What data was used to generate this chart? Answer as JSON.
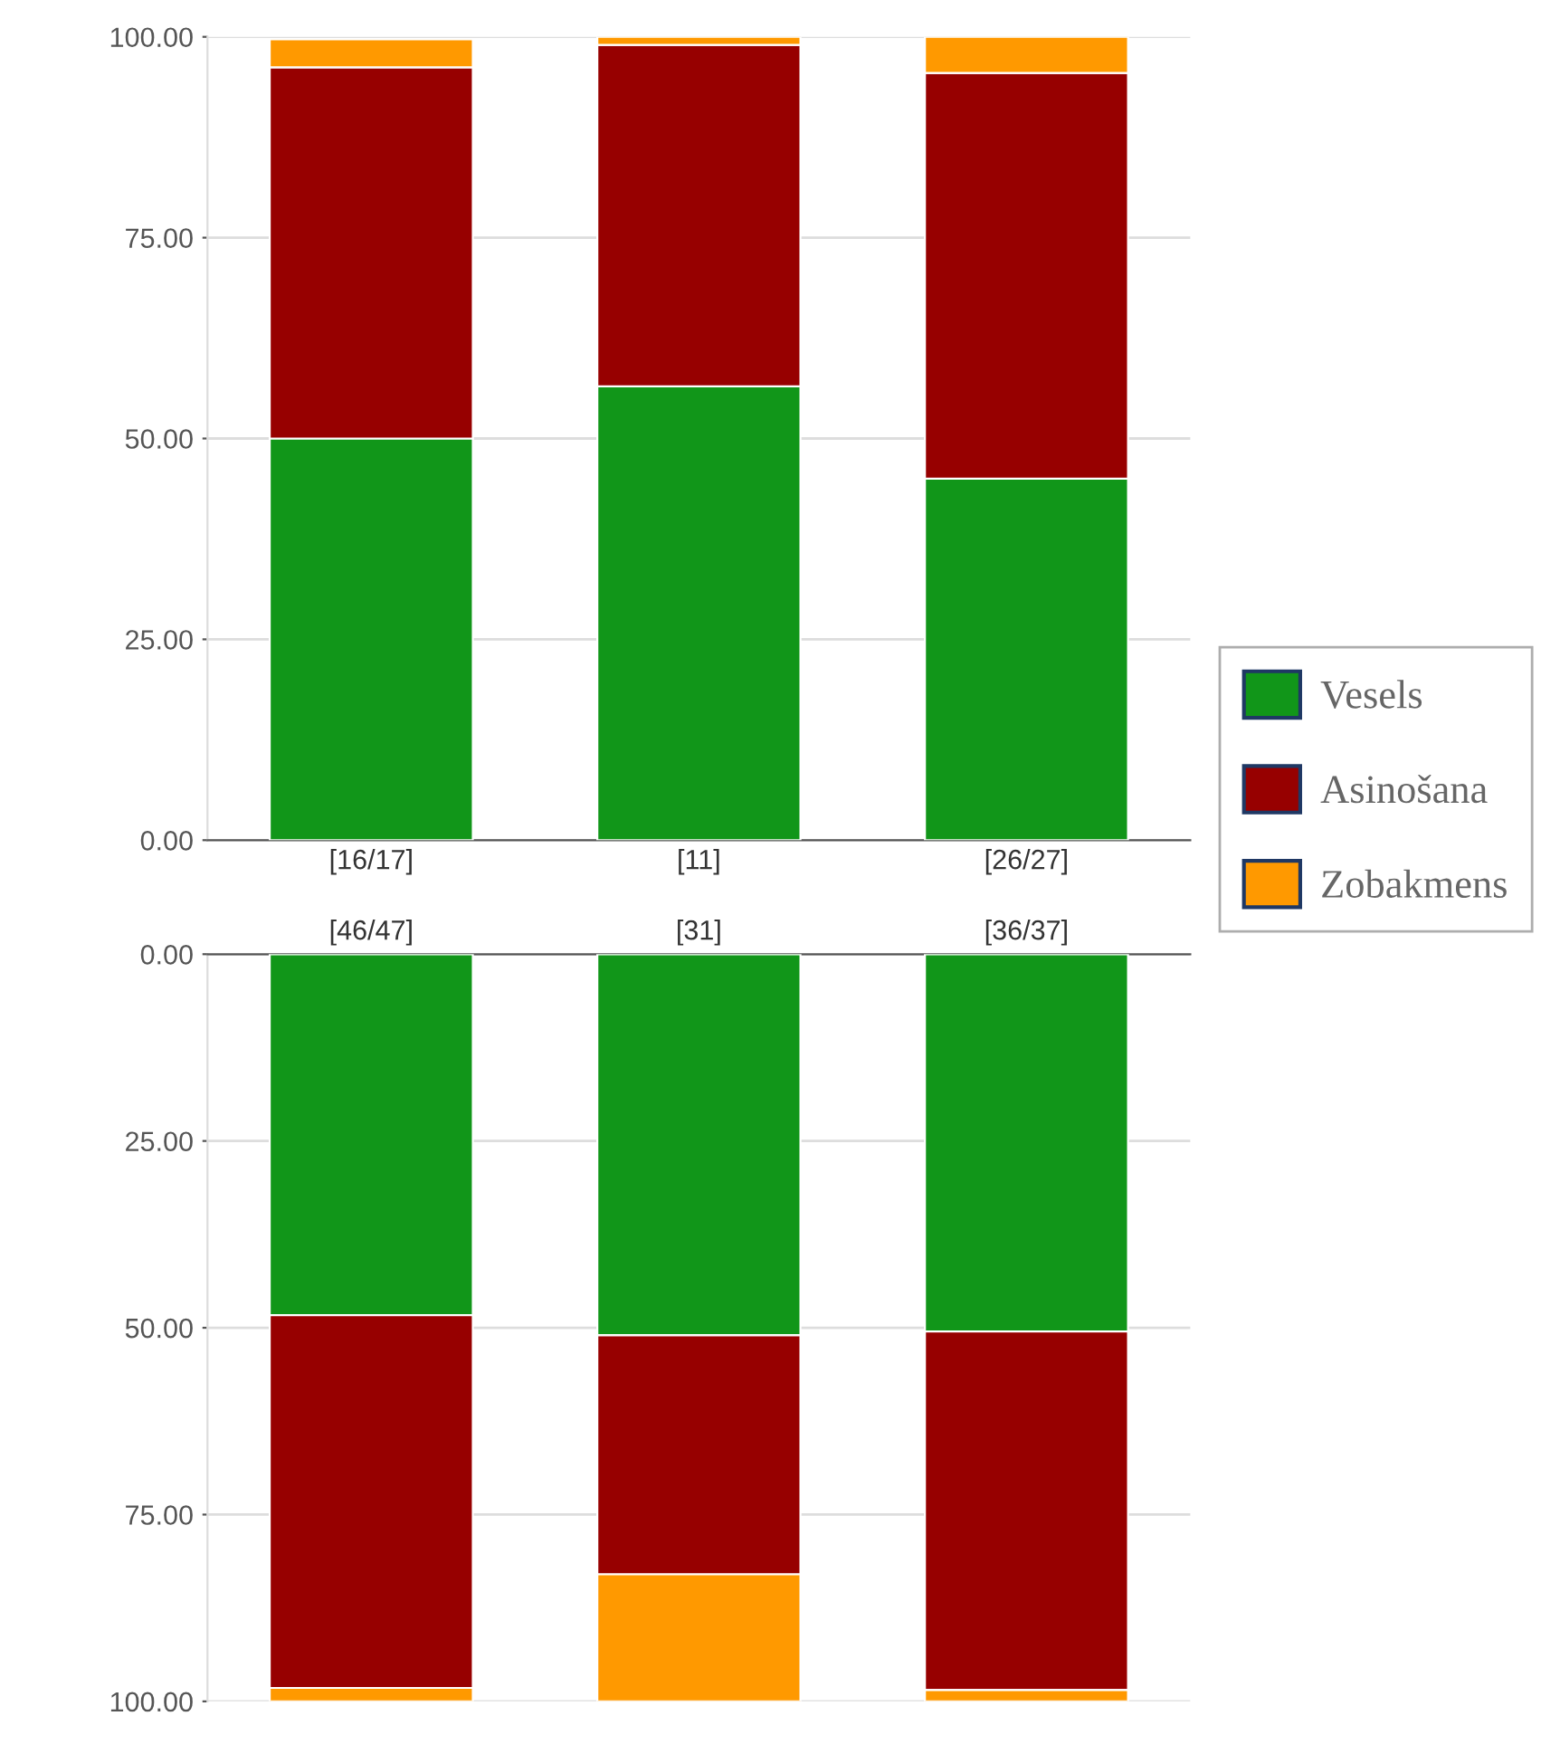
{
  "chart_data": [
    {
      "type": "bar",
      "stacked": true,
      "categories": [
        "[16/17]",
        "[11]",
        "[26/27]"
      ],
      "series": [
        {
          "name": "Vesels",
          "color": "#119619",
          "values": [
            50,
            56.5,
            45
          ]
        },
        {
          "name": "Asinošana",
          "color": "#970000",
          "values": [
            46.2,
            42.5,
            50.5
          ]
        },
        {
          "name": "Zobakmens",
          "color": "#ff9900",
          "values": [
            3.5,
            1,
            4.5
          ]
        }
      ],
      "ylim": [
        0,
        100
      ],
      "yticks": [
        {
          "value": 0,
          "label": "0.00"
        },
        {
          "value": 25,
          "label": "25.00"
        },
        {
          "value": 50,
          "label": "50.00"
        },
        {
          "value": 75,
          "label": "75.00"
        },
        {
          "value": 100,
          "label": "100.00"
        }
      ],
      "grid": "y",
      "legend": "right"
    },
    {
      "type": "bar",
      "stacked": true,
      "categories": [
        "[46/47]",
        "[31]",
        "[36/37]"
      ],
      "series": [
        {
          "color": "#119619",
          "values": [
            48.3,
            51,
            50.5
          ]
        },
        {
          "color": "#970000",
          "values": [
            49.9,
            32,
            48
          ]
        },
        {
          "color": "#ff9900",
          "values": [
            1.8,
            17,
            1.5
          ]
        }
      ],
      "ylim": [
        100,
        0
      ],
      "yticks": [
        {
          "value": 0,
          "label": "0.00"
        },
        {
          "value": 25,
          "label": "25.00"
        },
        {
          "value": 50,
          "label": "50.00"
        },
        {
          "value": 75,
          "label": "75.00"
        },
        {
          "value": 100,
          "label": "100.00"
        }
      ],
      "grid": "y"
    }
  ]
}
